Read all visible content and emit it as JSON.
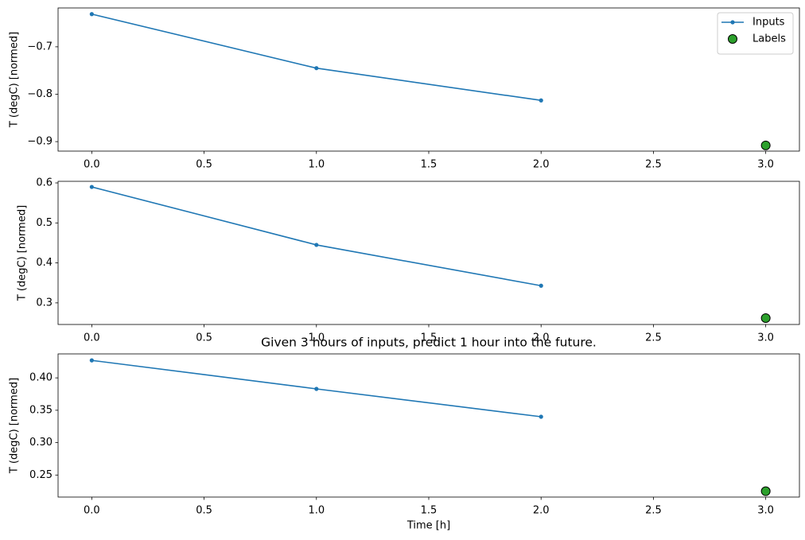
{
  "chart_data": [
    {
      "type": "line",
      "ylabel": "T (degC) [normed]",
      "legend": "upper right",
      "xlim": [
        -0.15,
        3.15
      ],
      "ylim": [
        -0.92,
        -0.618
      ],
      "xticks": [
        {
          "value": 0,
          "label": "0.0"
        },
        {
          "value": 0.5,
          "label": "0.5"
        },
        {
          "value": 1,
          "label": "1.0"
        },
        {
          "value": 1.5,
          "label": "1.5"
        },
        {
          "value": 2,
          "label": "2.0"
        },
        {
          "value": 2.5,
          "label": "2.5"
        },
        {
          "value": 3,
          "label": "3.0"
        }
      ],
      "yticks": [
        {
          "value": -0.9,
          "label": "−0.9"
        },
        {
          "value": -0.8,
          "label": "−0.8"
        },
        {
          "value": -0.7,
          "label": "−0.7"
        }
      ],
      "series": [
        {
          "name": "Inputs",
          "type": "line",
          "color": "#1f77b4",
          "x": [
            0,
            1,
            2
          ],
          "values": [
            -0.631,
            -0.745,
            -0.813
          ]
        },
        {
          "name": "Labels",
          "type": "scatter",
          "color": "#2ca02c",
          "x": [
            3
          ],
          "values": [
            -0.908
          ]
        }
      ]
    },
    {
      "type": "line",
      "ylabel": "T (degC) [normed]",
      "xlim": [
        -0.15,
        3.15
      ],
      "ylim": [
        0.246,
        0.604
      ],
      "xticks": [
        {
          "value": 0,
          "label": "0.0"
        },
        {
          "value": 0.5,
          "label": "0.5"
        },
        {
          "value": 1,
          "label": "1.0"
        },
        {
          "value": 1.5,
          "label": "1.5"
        },
        {
          "value": 2,
          "label": "2.0"
        },
        {
          "value": 2.5,
          "label": "2.5"
        },
        {
          "value": 3,
          "label": "3.0"
        }
      ],
      "yticks": [
        0.3,
        0.4,
        0.5,
        0.6
      ],
      "series": [
        {
          "type": "line",
          "color": "#1f77b4",
          "x": [
            0,
            1,
            2
          ],
          "values": [
            0.59,
            0.445,
            0.343
          ]
        },
        {
          "type": "scatter",
          "color": "#2ca02c",
          "x": [
            3
          ],
          "values": [
            0.262
          ]
        }
      ]
    },
    {
      "type": "line",
      "title": "Given 3 hours of inputs, predict 1 hour into the future.",
      "ylabel": "T (degC) [normed]",
      "xlabel": "Time [h]",
      "xlim": [
        -0.15,
        3.15
      ],
      "ylim": [
        0.216,
        0.437
      ],
      "xticks": [
        {
          "value": 0,
          "label": "0.0"
        },
        {
          "value": 0.5,
          "label": "0.5"
        },
        {
          "value": 1,
          "label": "1.0"
        },
        {
          "value": 1.5,
          "label": "1.5"
        },
        {
          "value": 2,
          "label": "2.0"
        },
        {
          "value": 2.5,
          "label": "2.5"
        },
        {
          "value": 3,
          "label": "3.0"
        }
      ],
      "yticks": [
        0.25,
        {
          "value": 0.3,
          "label": "0.30"
        },
        0.35,
        {
          "value": 0.4,
          "label": "0.40"
        }
      ],
      "series": [
        {
          "type": "line",
          "color": "#1f77b4",
          "x": [
            0,
            1,
            2
          ],
          "values": [
            0.427,
            0.383,
            0.34
          ]
        },
        {
          "type": "scatter",
          "color": "#2ca02c",
          "x": [
            3
          ],
          "values": [
            0.225
          ]
        }
      ]
    }
  ]
}
